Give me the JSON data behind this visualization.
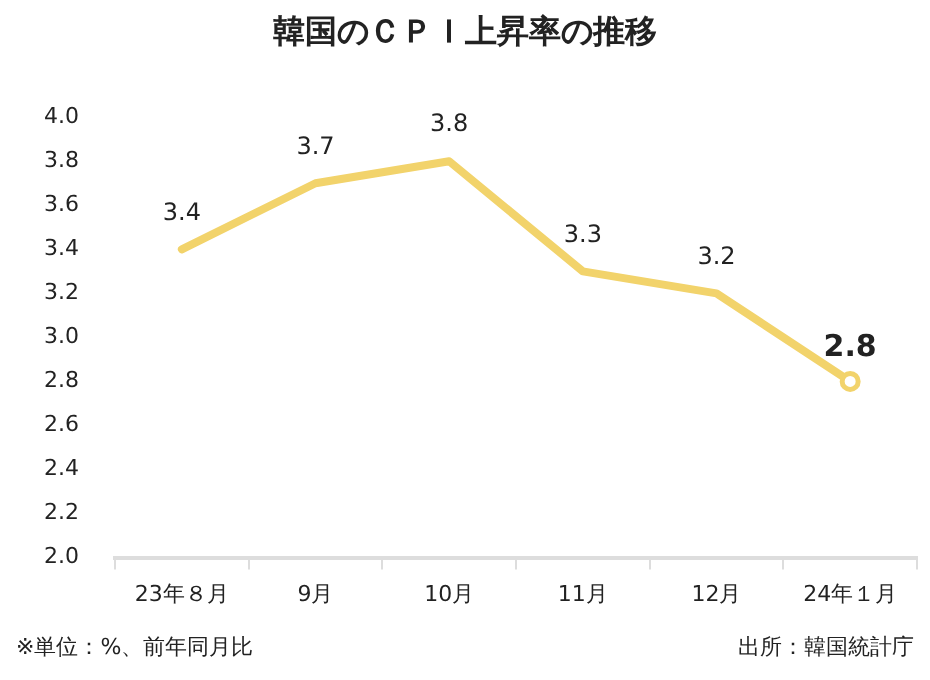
{
  "chart_data": {
    "type": "line",
    "title": "韓国のＣＰＩ上昇率の推移",
    "categories": [
      "23年８月",
      "9月",
      "10月",
      "11月",
      "12月",
      "24年１月"
    ],
    "series": [
      {
        "color": "#f2d36b",
        "values": [
          3.4,
          3.7,
          3.8,
          3.3,
          3.2,
          2.8
        ]
      }
    ],
    "ylim": [
      2.0,
      4.0
    ],
    "yticks": [
      {
        "value": 2.0,
        "label": "2.0"
      },
      {
        "value": 2.2,
        "label": "2.2"
      },
      {
        "value": 2.4,
        "label": "2.4"
      },
      {
        "value": 2.6,
        "label": "2.6"
      },
      {
        "value": 2.8,
        "label": "2.8"
      },
      {
        "value": 3.0,
        "label": "3.0"
      },
      {
        "value": 3.2,
        "label": "3.2"
      },
      {
        "value": 3.4,
        "label": "3.4"
      },
      {
        "value": 3.6,
        "label": "3.6"
      },
      {
        "value": 3.8,
        "label": "3.8"
      },
      {
        "value": 4.0,
        "label": "4.0"
      }
    ],
    "grid": false,
    "legend": false,
    "data_labels": true,
    "annotations": [
      "※単位：%、前年同月比",
      "出所：韓国統計庁"
    ]
  }
}
